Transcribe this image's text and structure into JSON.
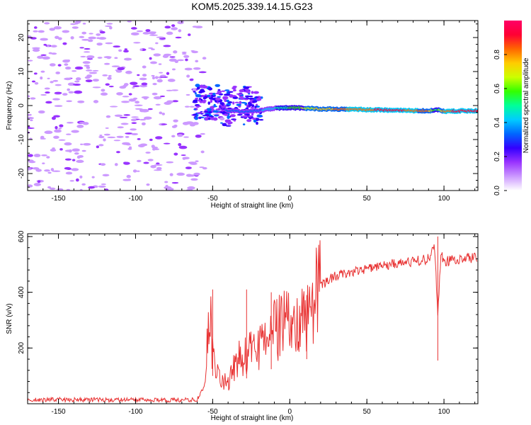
{
  "title": "KOM5.2025.339.14.15.G23",
  "chart_data": [
    {
      "type": "heatmap",
      "title": "KOM5.2025.339.14.15.G23",
      "xlabel": "Height of straight line (km)",
      "ylabel": "Frequency (Hz)",
      "xlim": [
        -170,
        122
      ],
      "ylim": [
        -25,
        25
      ],
      "xticks": [
        -150,
        -100,
        -50,
        0,
        50,
        100
      ],
      "yticks": [
        -20,
        -10,
        0,
        10,
        20
      ],
      "colorbar": {
        "label": "Normalized spectral amplitude",
        "range": [
          0,
          1
        ],
        "ticks": [
          "0.0",
          "0.2",
          "0.4",
          "0.6",
          "0.8"
        ],
        "colors": [
          "#ffffff",
          "#cc99ff",
          "#9933ff",
          "#3300ff",
          "#0066ff",
          "#00ccff",
          "#00ff99",
          "#33ff00",
          "#ccff00",
          "#ffcc00",
          "#ff6600",
          "#ff0033",
          "#ff0066"
        ]
      },
      "signal_trace": {
        "x": [
          -60,
          -50,
          -40,
          -30,
          -20,
          -10,
          0,
          10,
          20,
          30,
          40,
          50,
          60,
          70,
          80,
          90,
          95,
          100,
          110,
          122
        ],
        "freq": [
          1.0,
          0.5,
          -1.5,
          -1.8,
          -1.5,
          -0.8,
          -0.6,
          -0.8,
          -1.0,
          -1.1,
          -1.1,
          -1.2,
          -1.3,
          -1.4,
          -1.5,
          -1.6,
          -1.2,
          -1.7,
          -1.6,
          -1.5
        ],
        "amplitude": [
          0.2,
          0.25,
          0.3,
          0.3,
          0.35,
          0.45,
          0.55,
          0.65,
          0.75,
          0.8,
          0.85,
          0.85,
          0.9,
          0.9,
          0.85,
          0.8,
          0.5,
          0.85,
          0.9,
          0.95
        ]
      }
    },
    {
      "type": "line",
      "xlabel": "Height of straight line (km)",
      "ylabel": "SNR (v/v)",
      "xlim": [
        -170,
        122
      ],
      "ylim": [
        0,
        610
      ],
      "xticks": [
        -150,
        -100,
        -50,
        0,
        50,
        100
      ],
      "yticks": [
        200,
        400,
        600
      ],
      "series": [
        {
          "name": "SNR",
          "color": "#e83030",
          "x": [
            -170,
            -160,
            -150,
            -140,
            -130,
            -120,
            -110,
            -100,
            -90,
            -80,
            -70,
            -60,
            -55,
            -52,
            -50,
            -48,
            -45,
            -40,
            -35,
            -30,
            -25,
            -20,
            -15,
            -10,
            -5,
            0,
            5,
            10,
            15,
            20,
            25,
            30,
            40,
            50,
            60,
            70,
            80,
            90,
            94,
            96,
            98,
            100,
            110,
            122
          ],
          "y": [
            15,
            14,
            16,
            14,
            15,
            14,
            13,
            14,
            13,
            12,
            13,
            15,
            70,
            320,
            200,
            130,
            100,
            60,
            150,
            170,
            200,
            190,
            230,
            260,
            280,
            290,
            300,
            310,
            360,
            420,
            445,
            460,
            475,
            485,
            495,
            505,
            510,
            520,
            560,
            310,
            540,
            510,
            520,
            525
          ]
        }
      ],
      "annotations": [
        {
          "x": -50,
          "y": 410
        },
        {
          "x": -28,
          "y": 410
        },
        {
          "x": -12,
          "y": 400
        },
        {
          "x": 11,
          "y": 390
        },
        {
          "x": 96,
          "y": 600
        }
      ]
    }
  ]
}
